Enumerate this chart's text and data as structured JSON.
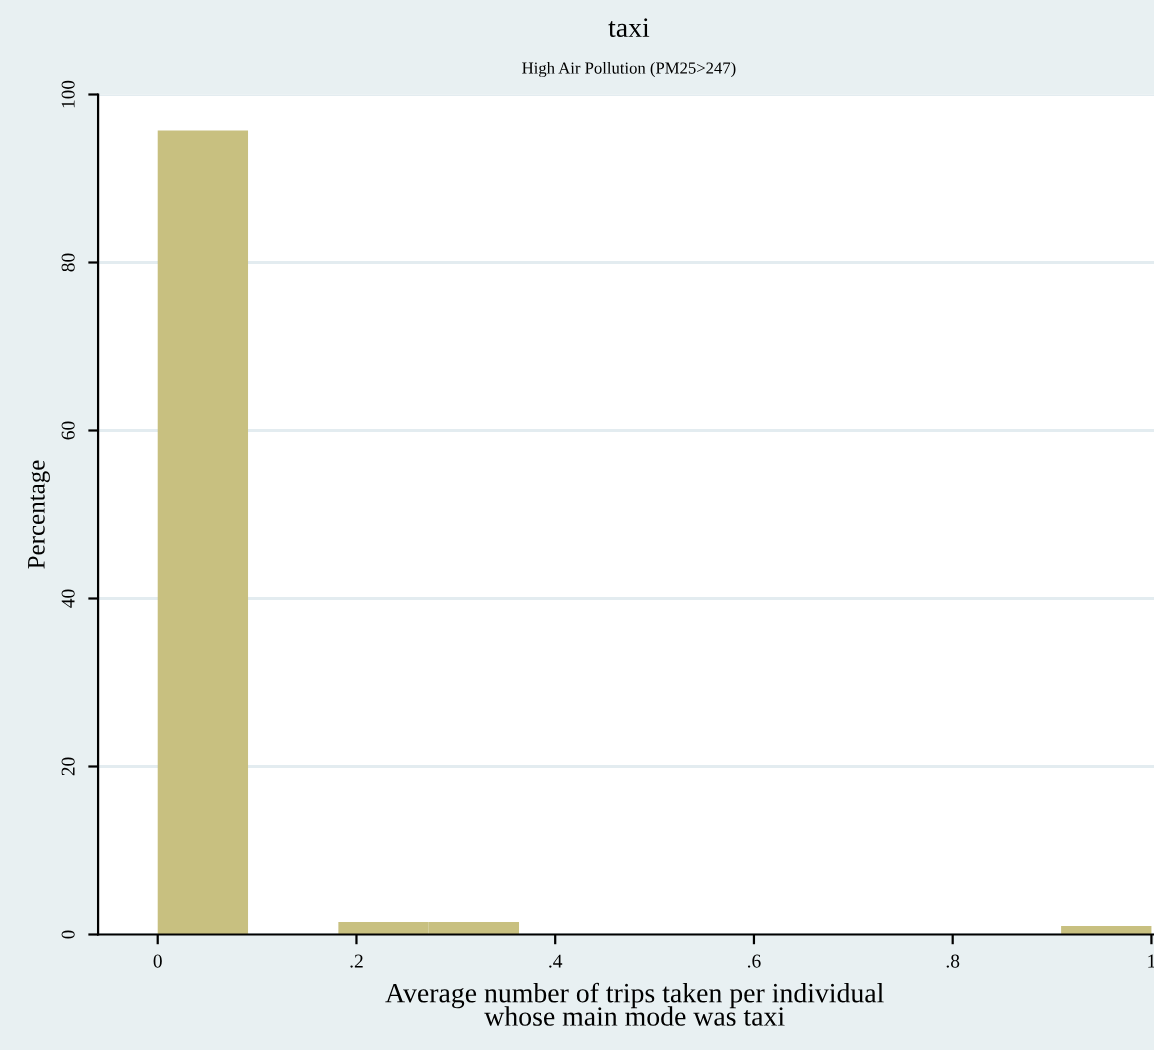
{
  "chart_data": {
    "type": "histogram",
    "title": "taxi",
    "subtitle": "High Air Pollution (PM25>247)",
    "xlabel": "Average number of trips taken per individual\nwhose main mode was taxi",
    "ylabel": "Percentage",
    "bins": [
      0,
      0.0909,
      0.1818,
      0.2727,
      0.3636,
      0.4545,
      0.5455,
      0.6364,
      0.7273,
      0.8182,
      0.9091,
      1.0
    ],
    "values": [
      95.7,
      0,
      1.5,
      1.5,
      0,
      0,
      0,
      0,
      0,
      0,
      1.0
    ],
    "color": "#c8c080",
    "xlim": [
      -0.06,
      1.02
    ],
    "xticks": [
      {
        "value": 0,
        "label": "0"
      },
      {
        "value": 0.2,
        "label": ".2"
      },
      {
        "value": 0.4,
        "label": ".4"
      },
      {
        "value": 0.6,
        "label": ".6"
      },
      {
        "value": 0.8,
        "label": ".8"
      },
      {
        "value": 1,
        "label": "1"
      }
    ],
    "ylim": [
      0,
      100
    ],
    "yticks": [
      0,
      20,
      40,
      60,
      80,
      100
    ],
    "grid": "y"
  }
}
